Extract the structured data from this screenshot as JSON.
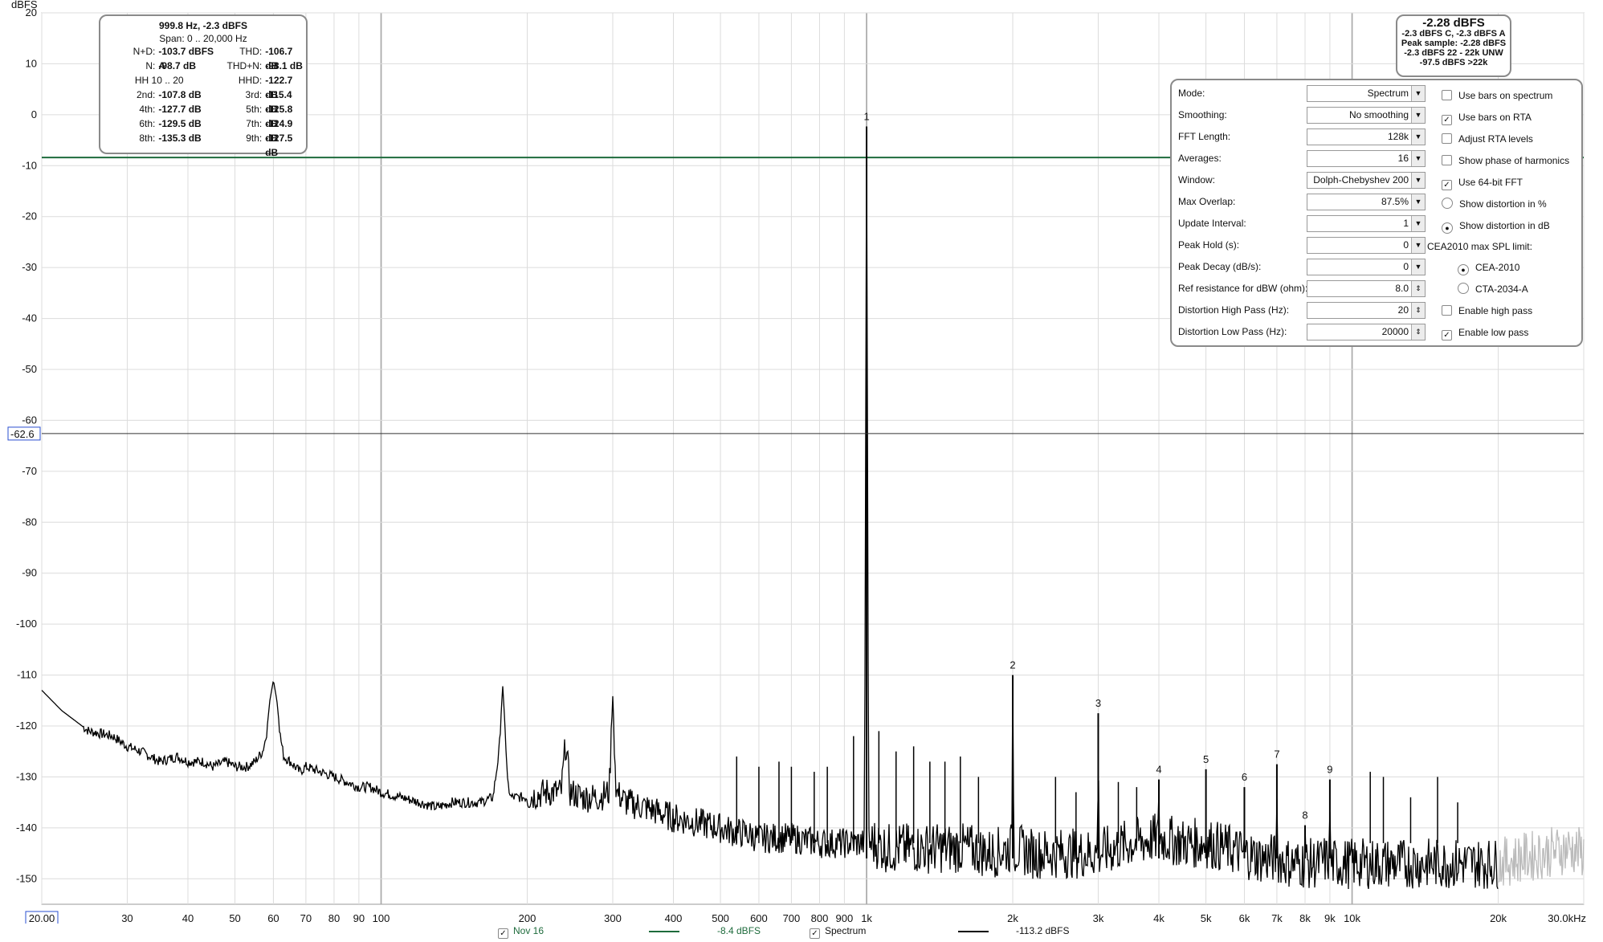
{
  "chart_data": {
    "type": "line",
    "title": "",
    "ylabel": "dBFS",
    "xlabel": "",
    "xscale": "log",
    "xlim": [
      20,
      30000
    ],
    "ylim": [
      -155,
      20
    ],
    "grid": true,
    "y_ticks": [
      20,
      10,
      0,
      -10,
      -20,
      -30,
      -40,
      -50,
      -60,
      -70,
      -80,
      -90,
      -100,
      -110,
      -120,
      -130,
      -140,
      -150
    ],
    "x_ticks": [
      {
        "v": 20,
        "label": "20.00"
      },
      {
        "v": 30,
        "label": "30"
      },
      {
        "v": 40,
        "label": "40"
      },
      {
        "v": 50,
        "label": "50"
      },
      {
        "v": 60,
        "label": "60"
      },
      {
        "v": 70,
        "label": "70"
      },
      {
        "v": 80,
        "label": "80"
      },
      {
        "v": 90,
        "label": "90"
      },
      {
        "v": 100,
        "label": "100"
      },
      {
        "v": 200,
        "label": "200"
      },
      {
        "v": 300,
        "label": "300"
      },
      {
        "v": 400,
        "label": "400"
      },
      {
        "v": 500,
        "label": "500"
      },
      {
        "v": 600,
        "label": "600"
      },
      {
        "v": 700,
        "label": "700"
      },
      {
        "v": 800,
        "label": "800"
      },
      {
        "v": 900,
        "label": "900"
      },
      {
        "v": 1000,
        "label": "1k"
      },
      {
        "v": 2000,
        "label": "2k"
      },
      {
        "v": 3000,
        "label": "3k"
      },
      {
        "v": 4000,
        "label": "4k"
      },
      {
        "v": 5000,
        "label": "5k"
      },
      {
        "v": 6000,
        "label": "6k"
      },
      {
        "v": 7000,
        "label": "7k"
      },
      {
        "v": 8000,
        "label": "8k"
      },
      {
        "v": 9000,
        "label": "9k"
      },
      {
        "v": 10000,
        "label": "10k"
      },
      {
        "v": 20000,
        "label": "20k"
      },
      {
        "v": 30000,
        "label": "30.0kHz"
      }
    ],
    "cursor_y": {
      "value": -62.6,
      "label": "-62.6"
    },
    "series": [
      {
        "name": "Nov 16",
        "color": "#1e6b3c",
        "x": [
          20,
          30000
        ],
        "y": [
          -8.4,
          -8.4
        ]
      },
      {
        "name": "Spectrum",
        "color": "#000000",
        "extended_color": "#bbbbbb",
        "x": [
          20,
          22,
          25,
          28,
          30,
          32,
          35,
          38,
          40,
          43,
          45,
          48,
          50,
          53,
          55,
          57,
          58,
          59,
          60,
          61,
          62,
          63,
          65,
          68,
          70,
          75,
          80,
          85,
          90,
          95,
          100,
          110,
          120,
          130,
          140,
          150,
          160,
          170,
          175,
          178,
          180,
          182,
          185,
          200,
          220,
          235,
          240,
          245,
          260,
          280,
          295,
          300,
          305,
          320,
          350,
          400,
          450,
          500,
          540,
          560,
          600,
          700,
          800,
          900,
          960,
          990,
          1000,
          1010,
          1040,
          1100,
          1200,
          1400,
          1600,
          1800,
          1990,
          2000,
          2010,
          2200,
          2500,
          2990,
          3000,
          3010,
          3500,
          3990,
          4000,
          4010,
          4500,
          4990,
          5000,
          5010,
          5500,
          5990,
          6000,
          6010,
          6500,
          6990,
          7000,
          7010,
          7500,
          7990,
          8000,
          8010,
          8500,
          8990,
          9000,
          9010,
          10000,
          12000,
          15000,
          18000,
          20000,
          22000,
          25000,
          28000,
          30000
        ],
        "y": [
          -113,
          -117,
          -121,
          -122,
          -124,
          -125,
          -127,
          -126,
          -127,
          -127,
          -128,
          -127,
          -128,
          -128,
          -127,
          -125,
          -122,
          -115,
          -111,
          -115,
          -122,
          -126,
          -127,
          -129,
          -128,
          -129,
          -130,
          -131,
          -132,
          -132,
          -133,
          -134,
          -135,
          -136,
          -135,
          -135,
          -135,
          -134,
          -125,
          -112,
          -120,
          -131,
          -134,
          -134,
          -133,
          -133,
          -123,
          -133,
          -134,
          -134,
          -133,
          -114,
          -133,
          -135,
          -136,
          -138,
          -139,
          -140,
          -141,
          -141,
          -142,
          -142,
          -143,
          -143,
          -143,
          -143,
          -2.3,
          -143,
          -143,
          -144,
          -144,
          -144,
          -144,
          -145,
          -144,
          -110,
          -144,
          -145,
          -145,
          -145,
          -117.5,
          -145,
          -143,
          -142,
          -130.5,
          -142,
          -143,
          -143,
          -128.5,
          -143,
          -144,
          -145,
          -132,
          -145,
          -146,
          -146,
          -127.5,
          -146,
          -147,
          -147,
          -139.5,
          -147,
          -147,
          -146,
          -130.5,
          -147,
          -147,
          -147,
          -147,
          -147,
          -147,
          -146,
          -145,
          -144,
          -145
        ]
      }
    ],
    "harmonics": [
      {
        "label": "1",
        "x": 1000,
        "y": -2.3
      },
      {
        "label": "2",
        "x": 2000,
        "y": -110
      },
      {
        "label": "3",
        "x": 3000,
        "y": -117.5
      },
      {
        "label": "4",
        "x": 4000,
        "y": -130.5
      },
      {
        "label": "5",
        "x": 5000,
        "y": -128.5
      },
      {
        "label": "6",
        "x": 6000,
        "y": -132
      },
      {
        "label": "7",
        "x": 7000,
        "y": -127.5
      },
      {
        "label": "8",
        "x": 8000,
        "y": -139.5
      },
      {
        "label": "9",
        "x": 9000,
        "y": -130.5
      }
    ],
    "extra_peaks": [
      {
        "x": 540,
        "y": -126
      },
      {
        "x": 600,
        "y": -128
      },
      {
        "x": 660,
        "y": -127
      },
      {
        "x": 700,
        "y": -128
      },
      {
        "x": 780,
        "y": -129
      },
      {
        "x": 830,
        "y": -128
      },
      {
        "x": 940,
        "y": -122
      },
      {
        "x": 1060,
        "y": -121
      },
      {
        "x": 1150,
        "y": -125
      },
      {
        "x": 1250,
        "y": -124
      },
      {
        "x": 1350,
        "y": -127
      },
      {
        "x": 1450,
        "y": -127
      },
      {
        "x": 1560,
        "y": -126
      },
      {
        "x": 1700,
        "y": -130
      },
      {
        "x": 2450,
        "y": -130
      },
      {
        "x": 2700,
        "y": -133
      },
      {
        "x": 3300,
        "y": -131
      },
      {
        "x": 3600,
        "y": -132
      },
      {
        "x": 10900,
        "y": -129
      },
      {
        "x": 11600,
        "y": -130
      },
      {
        "x": 13200,
        "y": -134
      },
      {
        "x": 15000,
        "y": -130
      },
      {
        "x": 16500,
        "y": -135
      }
    ]
  },
  "stats": {
    "title": "999.8 Hz, -2.3 dBFS",
    "span": "Span: 0 .. 20,000 Hz",
    "rows": [
      [
        "N+D:",
        "-103.7 dBFS A",
        "THD:",
        "-106.7 dB"
      ],
      [
        "N:",
        "-98.7 dB",
        "THD+N:",
        "-98.1 dB"
      ],
      [
        "HH 10 .. 20",
        "",
        "HHD:",
        "-122.7 dB"
      ],
      [
        "2nd:",
        "-107.8 dB",
        "3rd:",
        "-115.4 dB"
      ],
      [
        "4th:",
        "-127.7 dB",
        "5th:",
        "-125.8 dB"
      ],
      [
        "6th:",
        "-129.5 dB",
        "7th:",
        "-124.9 dB"
      ],
      [
        "8th:",
        "-135.3 dB",
        "9th:",
        "-127.5 dB"
      ]
    ]
  },
  "peak": {
    "value": "-2.28 dBFS",
    "l1": "-2.3 dBFS C, -2.3 dBFS A",
    "l2": "Peak sample: -2.28 dBFS",
    "l3": "-2.3 dBFS 22 - 22k UNW",
    "l4": "-97.5 dBFS >22k"
  },
  "controls": {
    "rows": [
      {
        "label": "Mode:",
        "value": "Spectrum"
      },
      {
        "label": "Smoothing:",
        "value": "No  smoothing"
      },
      {
        "label": "FFT Length:",
        "value": "128k"
      },
      {
        "label": "Averages:",
        "value": "16"
      },
      {
        "label": "Window:",
        "value": "Dolph-Chebyshev 200"
      },
      {
        "label": "Max Overlap:",
        "value": "87.5%"
      },
      {
        "label": "Update Interval:",
        "value": "1"
      },
      {
        "label": "Peak Hold (s):",
        "value": "0"
      },
      {
        "label": "Peak Decay (dB/s):",
        "value": "0"
      },
      {
        "label": "Ref resistance for dBW (ohm):",
        "value": "8.0"
      },
      {
        "label": "Distortion High Pass (Hz):",
        "value": "20"
      },
      {
        "label": "Distortion Low Pass (Hz):",
        "value": "20000"
      }
    ],
    "checks": {
      "bars_spectrum": "Use bars on spectrum",
      "bars_rta": "Use bars on RTA",
      "adjust_rta": "Adjust RTA levels",
      "phase_harm": "Show phase of harmonics",
      "fft64": "Use 64-bit FFT",
      "dist_pct": "Show distortion in %",
      "dist_db": "Show distortion in dB",
      "cea_limit": "CEA2010 max SPL limit:",
      "cea2010": "CEA-2010",
      "cta2034": "CTA-2034-A",
      "high_pass": "Enable high pass",
      "low_pass": "Enable low pass"
    }
  },
  "legend": {
    "s1_name": "Nov 16",
    "s1_value": "-8.4 dBFS",
    "s2_name": "Spectrum",
    "s2_value": "-113.2 dBFS"
  }
}
